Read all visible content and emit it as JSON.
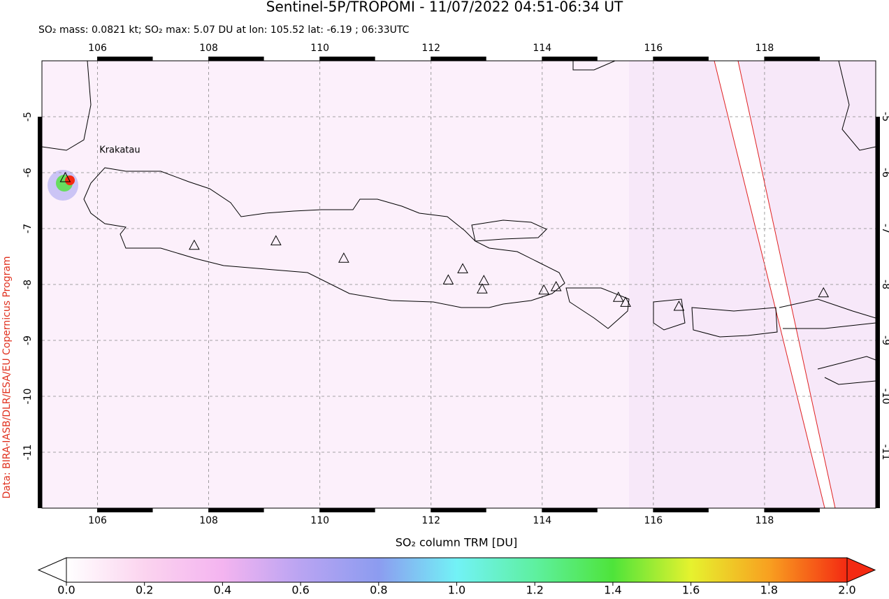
{
  "title": "Sentinel-5P/TROPOMI - 11/07/2022 04:51-06:34 UT",
  "subtitle": "SO₂ mass: 0.0821 kt; SO₂ max: 5.07 DU at lon: 105.52 lat: -6.19 ; 06:33UTC",
  "credit": "Data: BIRA-IASB/DLR/ESA/EU Copernicus Program",
  "map": {
    "lonlim": [
      105,
      120
    ],
    "latlim": [
      -12,
      -4
    ],
    "lonticks": [
      106,
      108,
      110,
      112,
      114,
      116,
      118
    ],
    "latticks": [
      -11,
      -10,
      -9,
      -8,
      -7,
      -6,
      -5
    ],
    "grid": true
  },
  "volcanoes": [
    {
      "name": "Krakatau",
      "lon": 105.42,
      "lat": -6.1
    },
    {
      "lon": 107.74,
      "lat": -7.31
    },
    {
      "lon": 109.21,
      "lat": -7.23
    },
    {
      "lon": 110.43,
      "lat": -7.54
    },
    {
      "lon": 112.31,
      "lat": -7.93
    },
    {
      "lon": 112.57,
      "lat": -7.73
    },
    {
      "lon": 112.95,
      "lat": -7.94
    },
    {
      "lon": 112.92,
      "lat": -8.09
    },
    {
      "lon": 114.03,
      "lat": -8.11
    },
    {
      "lon": 114.25,
      "lat": -8.05
    },
    {
      "lon": 115.37,
      "lat": -8.24
    },
    {
      "lon": 115.5,
      "lat": -8.33
    },
    {
      "lon": 116.46,
      "lat": -8.4
    },
    {
      "lon": 119.06,
      "lat": -8.16
    }
  ],
  "colorbar": {
    "label": "SO₂ column TRM [DU]",
    "lim": [
      0,
      2
    ],
    "ticks": [
      {
        "value": 0,
        "label": "0.0"
      },
      {
        "value": 0.2,
        "label": "0.2"
      },
      {
        "value": 0.4,
        "label": "0.4"
      },
      {
        "value": 0.6,
        "label": "0.6"
      },
      {
        "value": 0.8,
        "label": "0.8"
      },
      {
        "value": 1,
        "label": "1.0"
      },
      {
        "value": 1.2,
        "label": "1.2"
      },
      {
        "value": 1.4,
        "label": "1.4"
      },
      {
        "value": 1.6,
        "label": "1.6"
      },
      {
        "value": 1.8,
        "label": "1.8"
      },
      {
        "value": 2,
        "label": "2.0"
      }
    ]
  }
}
